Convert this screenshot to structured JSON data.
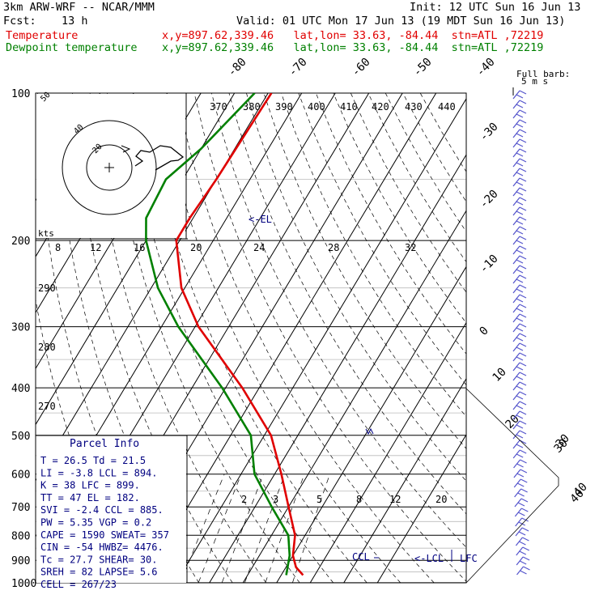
{
  "header": {
    "model": "3km ARW-WRF -- NCAR/MMM",
    "init": "Init: 12 UTC Sun 16 Jun 13",
    "fcst_label": "Fcst:",
    "fcst_value": "13 h",
    "valid": "Valid: 01 UTC Mon 17 Jun 13 (19 MDT Sun 16 Jun 13)",
    "temperature_label": "Temperature",
    "dewpoint_label": "Dewpoint temperature",
    "location": "x,y=897.62,339.46   lat,lon= 33.63, -84.44  stn=ATL ,72219"
  },
  "colors": {
    "temperature": "#e00000",
    "dewpoint": "#008000",
    "barbs": "#5555cc",
    "text_blue": "#000080"
  },
  "chart_data": {
    "type": "line",
    "title": "",
    "pressure_levels": [
      100,
      200,
      300,
      400,
      500,
      600,
      700,
      800,
      900,
      1000
    ],
    "ylabel": "",
    "ylim": [
      1000,
      100
    ],
    "y_scale": "log",
    "temperature_axis_labels": [
      "-80",
      "-70",
      "-60",
      "-50",
      "-40",
      "-30",
      "-20",
      "-10",
      "0",
      "10",
      "20",
      "30",
      "40"
    ],
    "theta_labels": [
      "370",
      "380",
      "390",
      "400",
      "410",
      "420",
      "430",
      "440"
    ],
    "theta_side_labels": [
      "290",
      "280",
      "270"
    ],
    "hodograph": {
      "unit_label": "kts",
      "ring_labels": [
        "50",
        "40",
        "20"
      ],
      "speed_ticks": [
        "8",
        "12",
        "16",
        "20",
        "24",
        "28",
        "32"
      ]
    },
    "mixing_ratio_labels": [
      "2",
      "3",
      "5",
      "8",
      "12",
      "20"
    ],
    "series": [
      {
        "name": "Temperature",
        "points": [
          [
            100,
            -69
          ],
          [
            150,
            -70
          ],
          [
            180,
            -71
          ],
          [
            200,
            -71
          ],
          [
            250,
            -61
          ],
          [
            300,
            -49
          ],
          [
            400,
            -25
          ],
          [
            500,
            -8
          ],
          [
            600,
            2
          ],
          [
            700,
            10
          ],
          [
            800,
            17
          ],
          [
            880,
            20
          ],
          [
            930,
            23
          ],
          [
            965,
            26.5
          ]
        ]
      },
      {
        "name": "Dewpoint temperature",
        "points": [
          [
            100,
            -74
          ],
          [
            130,
            -80
          ],
          [
            150,
            -85
          ],
          [
            180,
            -84
          ],
          [
            200,
            -80
          ],
          [
            250,
            -68
          ],
          [
            300,
            -55
          ],
          [
            400,
            -31
          ],
          [
            500,
            -14
          ],
          [
            600,
            -6
          ],
          [
            700,
            5
          ],
          [
            800,
            15
          ],
          [
            880,
            19
          ],
          [
            965,
            21.5
          ]
        ]
      }
    ],
    "annotations": [
      "<-EL",
      "CCL",
      "<-LCL",
      "LFC"
    ],
    "legend_title": "Full barb:",
    "legend_units": "5 m s",
    "barb_scale_labels": [
      "30",
      "40"
    ]
  },
  "parcel_info": {
    "title": "Parcel Info",
    "rows": [
      "T   =    26.5  Td =  21.5",
      "LI  =    -3.8  LCL =  894.",
      "K   =     38   LFC =  899.",
      "TT  =     47   EL  =  182.",
      "SVI =    -2.4  CCL =  885.",
      "PW  =   5.35   VGP =   0.2",
      "CAPE =  1590  SWEAT=  357",
      "CIN  =   -54  HWBZ= 4476.",
      "Tc  =   27.7  SHEAR=  30.",
      "SREH =    82  LAPSE=  5.6",
      "CELL = 267/23"
    ]
  }
}
